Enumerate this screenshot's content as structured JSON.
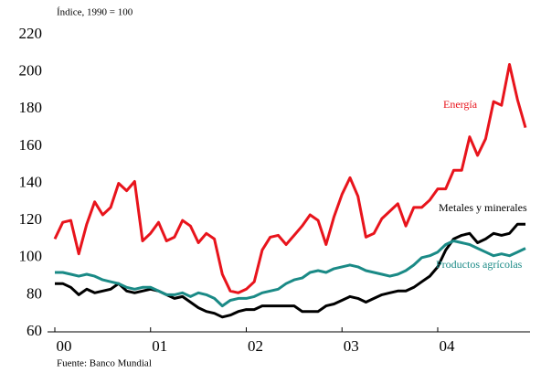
{
  "chart_data": {
    "type": "line",
    "subtitle": "Índice, 1990 = 100",
    "source": "Fuente: Banco Mundial",
    "x": [
      0,
      1,
      2,
      3,
      4,
      5,
      6,
      7,
      8,
      9,
      10,
      11,
      12,
      13,
      14,
      15,
      16,
      17,
      18,
      19,
      20,
      21,
      22,
      23,
      24,
      25,
      26,
      27,
      28,
      29,
      30,
      31,
      32,
      33,
      34,
      35,
      36,
      37,
      38,
      39,
      40,
      41,
      42,
      43,
      44,
      45,
      46,
      47,
      48,
      49,
      50,
      51,
      52,
      53,
      54,
      55,
      56,
      57,
      58,
      59
    ],
    "xlim": [
      0,
      59
    ],
    "xticks": [
      {
        "value": 0,
        "label": "00"
      },
      {
        "value": 12,
        "label": "01"
      },
      {
        "value": 24,
        "label": "02"
      },
      {
        "value": 36,
        "label": "03"
      },
      {
        "value": 48,
        "label": "04"
      }
    ],
    "ylim": [
      60,
      220
    ],
    "yticks": [
      60,
      80,
      100,
      120,
      140,
      160,
      180,
      200,
      220
    ],
    "grid": false,
    "series": [
      {
        "name": "Energía",
        "color": "#e8141c",
        "values": [
          110,
          119,
          120,
          102,
          118,
          130,
          123,
          127,
          140,
          136,
          141,
          109,
          113,
          119,
          109,
          111,
          120,
          117,
          108,
          113,
          110,
          91,
          82,
          81,
          83,
          87,
          104,
          111,
          112,
          107,
          112,
          117,
          123,
          120,
          107,
          122,
          134,
          143,
          133,
          111,
          113,
          121,
          125,
          129,
          117,
          127,
          127,
          131,
          137,
          137,
          147,
          147,
          165,
          155,
          164,
          184,
          182,
          204,
          185,
          170
        ]
      },
      {
        "name": "Metales y minerales",
        "color": "#000000",
        "values": [
          86,
          86,
          84,
          80,
          83,
          81,
          82,
          83,
          86,
          82,
          81,
          82,
          83,
          82,
          80,
          78,
          79,
          76,
          73,
          71,
          70,
          68,
          69,
          71,
          72,
          72,
          74,
          74,
          74,
          74,
          74,
          71,
          71,
          71,
          74,
          75,
          77,
          79,
          78,
          76,
          78,
          80,
          81,
          82,
          82,
          84,
          87,
          90,
          95,
          104,
          110,
          112,
          113,
          108,
          110,
          113,
          112,
          113,
          118,
          118
        ]
      },
      {
        "name": "Productos agrícolas",
        "color": "#1a8a86",
        "values": [
          92,
          92,
          91,
          90,
          91,
          90,
          88,
          87,
          86,
          84,
          83,
          84,
          84,
          82,
          80,
          80,
          81,
          79,
          81,
          80,
          78,
          74,
          77,
          78,
          78,
          79,
          81,
          82,
          83,
          86,
          88,
          89,
          92,
          93,
          92,
          94,
          95,
          96,
          95,
          93,
          92,
          91,
          90,
          91,
          93,
          96,
          100,
          101,
          103,
          107,
          109,
          108,
          107,
          105,
          103,
          101,
          102,
          101,
          103,
          105
        ]
      }
    ]
  }
}
